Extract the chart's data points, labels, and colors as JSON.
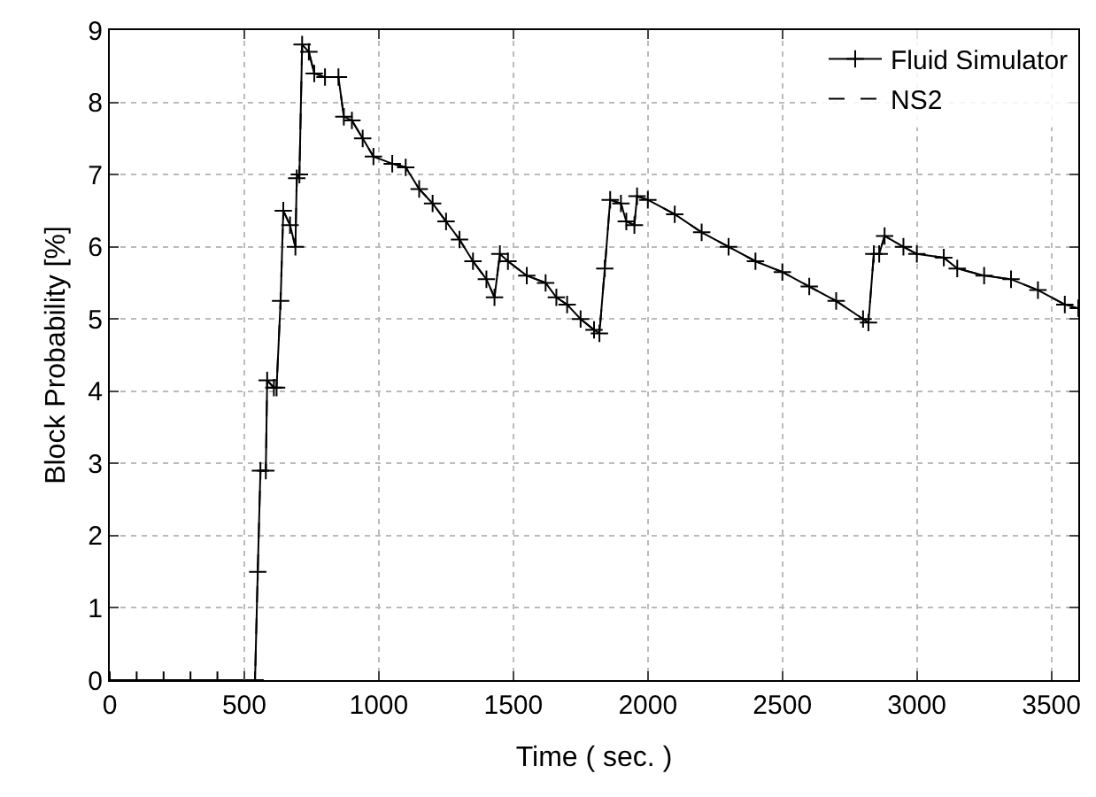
{
  "chart_data": {
    "type": "line",
    "xlabel": "Time ( sec. )",
    "ylabel": "Block Probability [%]",
    "x": [
      0,
      100,
      200,
      300,
      400,
      500,
      540,
      550,
      560,
      580,
      585,
      610,
      620,
      635,
      645,
      670,
      690,
      695,
      705,
      715,
      740,
      760,
      800,
      850,
      870,
      900,
      940,
      980,
      1050,
      1100,
      1150,
      1200,
      1250,
      1300,
      1350,
      1400,
      1430,
      1450,
      1480,
      1550,
      1620,
      1660,
      1700,
      1750,
      1800,
      1820,
      1840,
      1860,
      1900,
      1920,
      1950,
      1960,
      2000,
      2100,
      2200,
      2300,
      2400,
      2500,
      2600,
      2700,
      2800,
      2820,
      2840,
      2860,
      2880,
      2950,
      3000,
      3100,
      3150,
      3250,
      3350,
      3450,
      3550,
      3600
    ],
    "series": [
      {
        "name": "Fluid Simulator",
        "color": "#000000",
        "marker": "cross",
        "line_style": "solid",
        "values": [
          0,
          0,
          0,
          0,
          0,
          0,
          0,
          1.5,
          2.9,
          2.9,
          4.15,
          4.05,
          4.05,
          5.25,
          6.5,
          6.3,
          6.0,
          6.95,
          7.0,
          8.8,
          8.7,
          8.4,
          8.35,
          8.35,
          7.8,
          7.75,
          7.5,
          7.25,
          7.15,
          7.1,
          6.8,
          6.6,
          6.35,
          6.1,
          5.8,
          5.55,
          5.3,
          5.9,
          5.8,
          5.6,
          5.5,
          5.3,
          5.2,
          5.0,
          4.85,
          4.8,
          5.7,
          6.65,
          6.6,
          6.35,
          6.3,
          6.7,
          6.65,
          6.45,
          6.2,
          6.0,
          5.8,
          5.65,
          5.45,
          5.25,
          5.0,
          4.95,
          5.9,
          5.9,
          6.15,
          6.0,
          5.9,
          5.85,
          5.7,
          5.6,
          5.55,
          5.4,
          5.2,
          5.15
        ]
      },
      {
        "name": "NS2",
        "color": "#000000",
        "marker": "none",
        "line_style": "dashed",
        "values": [
          0,
          0,
          0,
          0,
          0,
          0,
          0,
          1.5,
          2.9,
          2.9,
          4.15,
          4.05,
          4.05,
          5.25,
          6.5,
          6.3,
          6.0,
          6.95,
          7.0,
          8.8,
          8.7,
          8.4,
          8.35,
          8.35,
          7.8,
          7.75,
          7.5,
          7.25,
          7.15,
          7.1,
          6.8,
          6.6,
          6.35,
          6.1,
          5.8,
          5.55,
          5.3,
          5.9,
          5.8,
          5.6,
          5.5,
          5.3,
          5.2,
          5.0,
          4.85,
          4.8,
          5.7,
          6.65,
          6.6,
          6.35,
          6.3,
          6.7,
          6.65,
          6.45,
          6.2,
          6.0,
          5.8,
          5.65,
          5.45,
          5.25,
          5.0,
          4.95,
          5.9,
          5.9,
          6.15,
          6.0,
          5.9,
          5.85,
          5.7,
          5.6,
          5.55,
          5.4,
          5.2,
          5.15
        ]
      }
    ],
    "xlim": [
      0,
      3600
    ],
    "xticks": [
      0,
      500,
      1000,
      1500,
      2000,
      2500,
      3000,
      3500
    ],
    "ylim": [
      0,
      9
    ],
    "yticks": [
      0,
      1,
      2,
      3,
      4,
      5,
      6,
      7,
      8,
      9
    ],
    "grid": true,
    "legend": "top right"
  }
}
